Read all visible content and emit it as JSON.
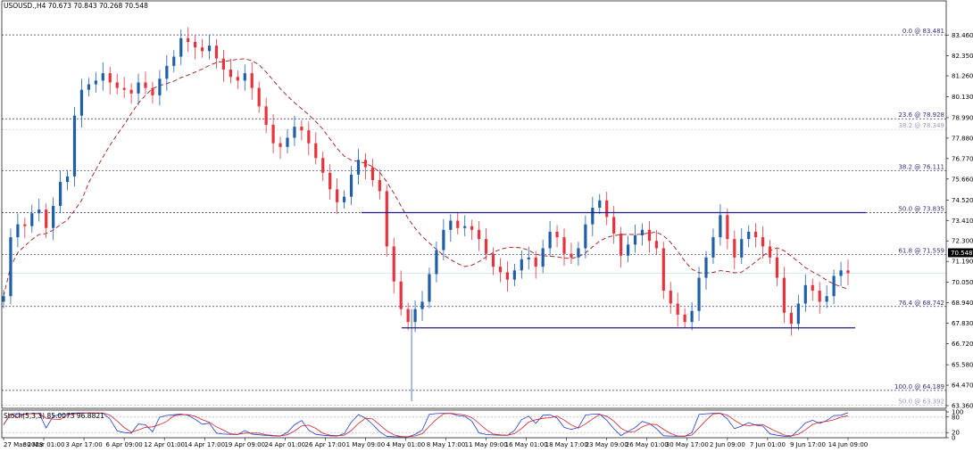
{
  "window": {
    "symbol_line": "USOUSD.,H4  70.673 70.843 70.268 70.548"
  },
  "indicator": {
    "label": "Stoch(5,3,3) 85.0073 96.8821"
  },
  "colors": {
    "bull": "#1f5fa8",
    "bear": "#e8323c",
    "ma": "#9c1b1b",
    "channel": "#1e1e8c",
    "fib": "#303080",
    "grid": "#e6e6e6",
    "stoch_main": "#1e3ccf",
    "stoch_signal": "#d0202a",
    "bid_tag_bg": "#000000"
  },
  "chart_data": [
    {
      "type": "candlestick",
      "title": "USOUSD.,H4",
      "ylim": [
        63.36,
        84.6
      ],
      "y_ticks": [
        "83.460",
        "82.350",
        "81.260",
        "80.130",
        "78.990",
        "77.880",
        "76.770",
        "75.660",
        "74.520",
        "73.410",
        "72.300",
        "71.190",
        "70.050",
        "68.940",
        "67.830",
        "66.720",
        "65.580",
        "64.470",
        "63.360"
      ],
      "x_ticks": [
        "27 Mar 2023",
        "30 Mar 01:00",
        "3 Apr 17:00",
        "6 Apr 09:00",
        "12 Apr 01:00",
        "14 Apr 17:00",
        "19 Apr 09:00",
        "24 Apr 01:00",
        "26 Apr 17:00",
        "1 May 09:00",
        "4 May 01:00",
        "8 May 17:00",
        "11 May 09:00",
        "16 May 01:00",
        "18 May 17:00",
        "23 May 09:00",
        "26 May 01:00",
        "30 May 17:00",
        "2 Jun 09:00",
        "7 Jun 01:00",
        "9 Jun 17:00",
        "14 Jun 09:00"
      ],
      "bid_price": "70.548",
      "fibonacci_levels": [
        {
          "label": "0.0 @ 83.481",
          "value": 83.481
        },
        {
          "label": "23.6 @ 78.928",
          "value": 78.928
        },
        {
          "label": "38.2 @ 78.349",
          "value": 78.349
        },
        {
          "label": "38.2 @ 76.111",
          "value": 76.111
        },
        {
          "label": "50.0 @ 73.835",
          "value": 73.835
        },
        {
          "label": "61.8 @ 71.559",
          "value": 71.559
        },
        {
          "label": "76.4 @ 68.742",
          "value": 68.742
        },
        {
          "label": "100.0 @ 64.189",
          "value": 64.189
        },
        {
          "label": "50.0 @ 63.392",
          "value": 63.392
        }
      ],
      "channel_lines": [
        73.835,
        67.58
      ],
      "price_path": [
        [
          "27 Mar 2023",
          69.3
        ],
        [
          null,
          72.5
        ],
        [
          null,
          73.2
        ],
        [
          null,
          73.1
        ],
        [
          null,
          73.8
        ],
        [
          null,
          74.0
        ],
        [
          null,
          73.0
        ],
        [
          null,
          74.2
        ],
        [
          null,
          75.5
        ],
        [
          null,
          75.8
        ],
        [
          "30 Mar 01:00",
          79.1
        ],
        [
          null,
          80.5
        ],
        [
          null,
          80.8
        ],
        [
          null,
          81.0
        ],
        [
          null,
          81.4
        ],
        [
          "3 Apr 17:00",
          80.9
        ],
        [
          null,
          80.6
        ],
        [
          null,
          80.5
        ],
        [
          null,
          80.3
        ],
        [
          null,
          80.9
        ],
        [
          "6 Apr 09:00",
          80.6
        ],
        [
          null,
          80.2
        ],
        [
          null,
          81.1
        ],
        [
          null,
          81.8
        ],
        [
          null,
          82.3
        ],
        [
          null,
          83.3
        ],
        [
          "12 Apr 01:00",
          83.1
        ],
        [
          null,
          82.8
        ],
        [
          null,
          82.6
        ],
        [
          null,
          82.9
        ],
        [
          null,
          82.2
        ],
        [
          "14 Apr 17:00",
          81.6
        ],
        [
          null,
          81.2
        ],
        [
          null,
          81.0
        ],
        [
          null,
          81.4
        ],
        [
          null,
          80.6
        ],
        [
          null,
          79.6
        ],
        [
          "19 Apr 09:00",
          78.6
        ],
        [
          null,
          77.6
        ],
        [
          null,
          77.4
        ],
        [
          null,
          77.9
        ],
        [
          null,
          78.5
        ],
        [
          "24 Apr 01:00",
          78.3
        ],
        [
          null,
          77.6
        ],
        [
          null,
          76.8
        ],
        [
          null,
          76.0
        ],
        [
          null,
          75.1
        ],
        [
          "26 Apr 17:00",
          74.4
        ],
        [
          null,
          74.7
        ],
        [
          null,
          75.9
        ],
        [
          null,
          76.7
        ],
        [
          null,
          76.3
        ],
        [
          null,
          75.6
        ],
        [
          null,
          75.0
        ],
        [
          "1 May 09:00",
          72.0
        ],
        [
          null,
          70.1
        ],
        [
          null,
          68.6
        ],
        [
          null,
          67.9
        ],
        [
          "4 May 01:00",
          68.6
        ],
        [
          null,
          69.0
        ],
        [
          null,
          70.5
        ],
        [
          null,
          71.8
        ],
        [
          null,
          72.9
        ],
        [
          null,
          73.4
        ],
        [
          "8 May 17:00",
          73.0
        ],
        [
          null,
          73.1
        ],
        [
          null,
          72.9
        ],
        [
          null,
          72.4
        ],
        [
          "11 May 09:00",
          71.6
        ],
        [
          null,
          70.9
        ],
        [
          null,
          70.6
        ],
        [
          null,
          70.2
        ],
        [
          null,
          70.7
        ],
        [
          "16 May 01:00",
          71.3
        ],
        [
          null,
          71.4
        ],
        [
          null,
          70.9
        ],
        [
          null,
          71.9
        ],
        [
          "18 May 17:00",
          72.8
        ],
        [
          null,
          72.5
        ],
        [
          null,
          71.6
        ],
        [
          null,
          71.4
        ],
        [
          null,
          71.9
        ],
        [
          null,
          73.2
        ],
        [
          "23 May 09:00",
          74.1
        ],
        [
          null,
          74.5
        ],
        [
          null,
          73.6
        ],
        [
          null,
          72.7
        ],
        [
          null,
          71.5
        ],
        [
          "26 May 01:00",
          72.1
        ],
        [
          null,
          72.6
        ],
        [
          null,
          72.9
        ],
        [
          null,
          72.3
        ],
        [
          null,
          71.9
        ],
        [
          "30 May 17:00",
          69.6
        ],
        [
          null,
          68.9
        ],
        [
          null,
          68.3
        ],
        [
          null,
          67.9
        ],
        [
          null,
          68.5
        ],
        [
          null,
          70.3
        ],
        [
          "2 Jun 09:00",
          71.4
        ],
        [
          null,
          72.5
        ],
        [
          null,
          73.7
        ],
        [
          null,
          72.4
        ],
        [
          null,
          71.4
        ],
        [
          "7 Jun 01:00",
          72.4
        ],
        [
          null,
          72.8
        ],
        [
          null,
          72.5
        ],
        [
          null,
          72.0
        ],
        [
          null,
          71.4
        ],
        [
          null,
          70.3
        ],
        [
          "9 Jun 17:00",
          68.4
        ],
        [
          null,
          67.8
        ],
        [
          null,
          68.9
        ],
        [
          null,
          69.9
        ],
        [
          null,
          69.6
        ],
        [
          null,
          69.0
        ],
        [
          "14 Jun 09:00",
          69.3
        ],
        [
          null,
          70.4
        ],
        [
          null,
          70.7
        ],
        [
          null,
          70.55
        ]
      ],
      "stochastic": {
        "ylim": [
          0,
          100
        ],
        "y_ticks": [
          "100",
          "80",
          "20",
          "0"
        ],
        "main": 96.8821,
        "signal": 85.0073
      }
    }
  ]
}
